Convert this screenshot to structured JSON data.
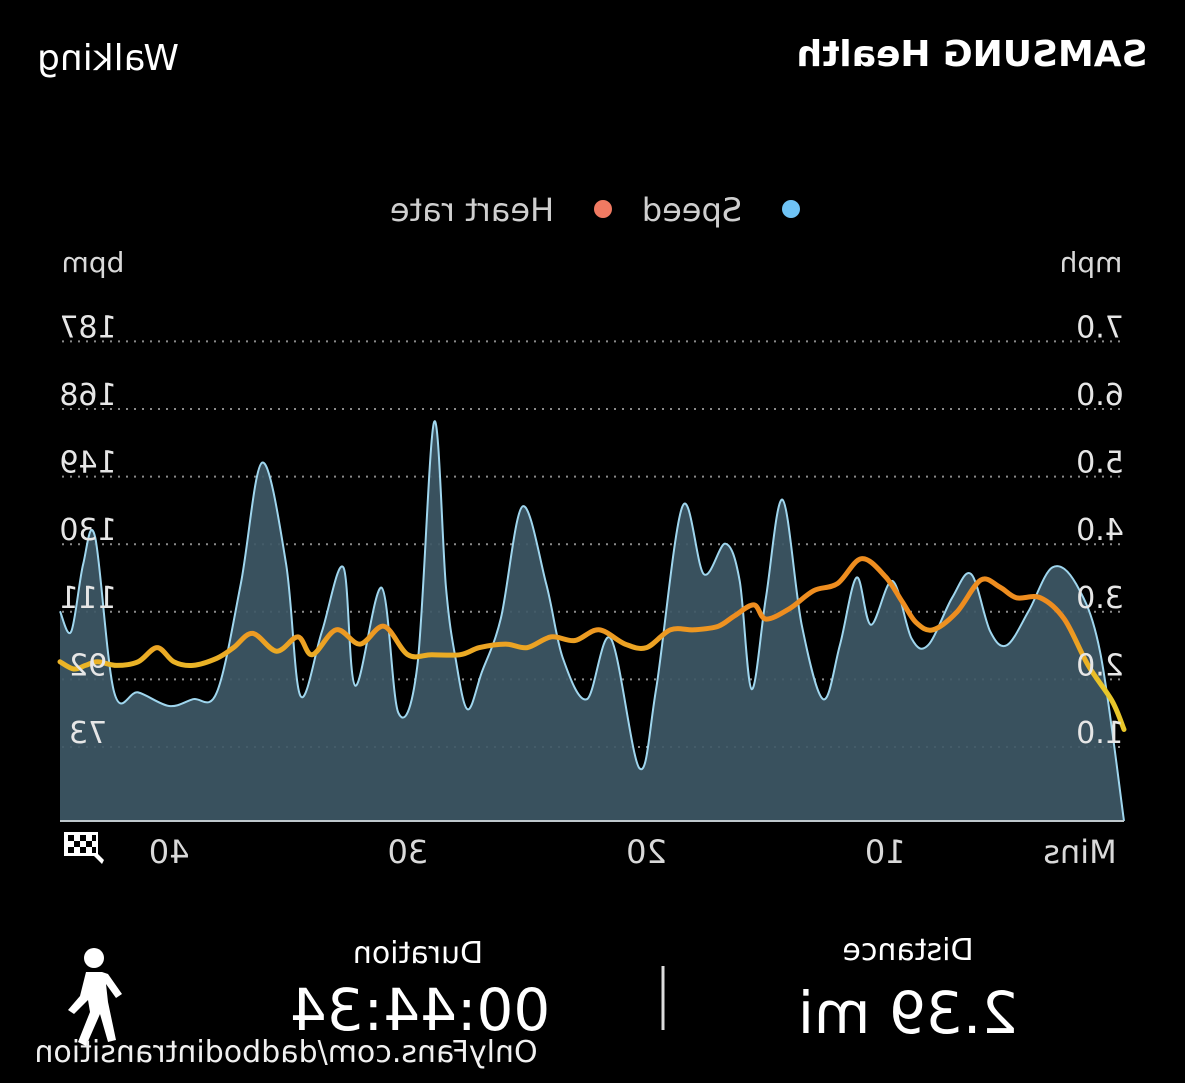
{
  "header": {
    "brand": "SAMSUNG Health",
    "activity": "Walking"
  },
  "legend": {
    "speed": "Speed",
    "heart_rate": "Heart rate"
  },
  "colors": {
    "background": "#000000",
    "speed_area_fill": "#3e5866",
    "speed_line": "#9fd6ee",
    "speed_dot": "#6fc3f5",
    "heart_dot": "#f07a62",
    "heart_low": "#e8c62a",
    "heart_high": "#ee8d1f",
    "grid": "#8a8a8a",
    "text_muted": "#d9d9d9"
  },
  "stats": {
    "duration_label": "Duration",
    "duration_value": "00:44:34",
    "distance_label": "Distance",
    "distance_value": "2.39 mi"
  },
  "watermark": "OnlyFans.com/dadbodintransition",
  "icons": {
    "walker": "walking-person-icon",
    "finish": "checkered-flag-icon"
  },
  "chart_data": {
    "type": "area",
    "mirrored": true,
    "xlabel": "Mins",
    "x_ticks": [
      "10",
      "20",
      "30",
      "40"
    ],
    "xlim": [
      0,
      44.57
    ],
    "y_left": {
      "unit": "mph",
      "ticks": [
        "1.0",
        "2.0",
        "3.0",
        "4.0",
        "5.0",
        "6.0",
        "7.0"
      ],
      "ylim": [
        0,
        7.0
      ]
    },
    "y_right": {
      "unit": "bpm",
      "ticks": [
        "73",
        "92",
        "111",
        "130",
        "149",
        "168",
        "187"
      ],
      "ylim": [
        52,
        187
      ]
    },
    "grid": true,
    "legend_position": "top",
    "series": [
      {
        "name": "Speed",
        "axis": "mph",
        "x": [
          0,
          1,
          2,
          3,
          4,
          4.9,
          5.6,
          6.4,
          7.2,
          8.2,
          8.9,
          9.7,
          10.6,
          11.2,
          11.9,
          12.6,
          13.5,
          14.3,
          15,
          15.6,
          16.1,
          16.7,
          17.6,
          18.5,
          19.6,
          20.3,
          21.5,
          22.5,
          23.5,
          24.2,
          25.2,
          26.1,
          26.9,
          27.5,
          28,
          28.4,
          28.9,
          29.6,
          30.4,
          31.1,
          32.2,
          32.7,
          33.6,
          34.5,
          35.1,
          36.1,
          37,
          38,
          39,
          40,
          41.3,
          42.3,
          43.1,
          43.6,
          44.1,
          44.57
        ],
        "values": [
          0.0,
          2.2,
          3.2,
          3.45,
          2.8,
          2.3,
          2.5,
          3.35,
          3.0,
          2.3,
          2.4,
          3.25,
          2.6,
          3.3,
          2.3,
          1.5,
          2.6,
          4.45,
          3.0,
          1.65,
          3.25,
          3.8,
          3.35,
          4.35,
          1.65,
          0.6,
          2.4,
          1.5,
          2.1,
          3.2,
          4.35,
          2.7,
          1.9,
          1.35,
          2.1,
          3.15,
          5.6,
          2.0,
          1.3,
          3.15,
          1.7,
          3.45,
          2.5,
          1.55,
          3.5,
          5.0,
          3.2,
          1.6,
          1.5,
          1.4,
          1.6,
          1.6,
          3.9,
          3.5,
          2.5,
          2.8
        ]
      },
      {
        "name": "Heart rate",
        "axis": "bpm",
        "x": [
          0,
          0.5,
          1.5,
          2.5,
          3.5,
          4.5,
          5.2,
          6,
          7,
          8,
          8.7,
          9.3,
          10,
          11,
          12,
          13,
          14,
          15,
          15.5,
          16.3,
          17,
          18,
          19,
          20,
          20.9,
          22,
          23,
          24,
          25,
          25.9,
          27,
          27.8,
          29,
          30,
          31,
          32,
          33,
          34,
          34.6,
          35.5,
          36.5,
          37.3,
          38,
          39,
          39.8,
          40.5,
          41.3,
          42.2,
          43,
          43.5,
          44,
          44.57
        ],
        "values": [
          74,
          82,
          92,
          105,
          111,
          111,
          114,
          116,
          107,
          102,
          104,
          110,
          117,
          122,
          115,
          113,
          108,
          105,
          109,
          106,
          103,
          102,
          102,
          97,
          98,
          102,
          99,
          100,
          97,
          98,
          97,
          95,
          95,
          95,
          103,
          98,
          102,
          95,
          100,
          96,
          101,
          97,
          94,
          92,
          93,
          97,
          93,
          92,
          93,
          92,
          91,
          93
        ]
      }
    ]
  }
}
